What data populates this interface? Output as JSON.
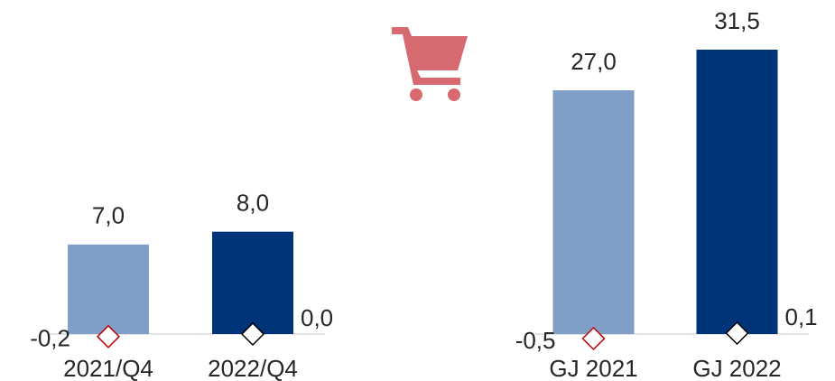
{
  "chart_data": [
    {
      "type": "bar",
      "categories": [
        "2021/Q4",
        "2022/Q4"
      ],
      "values": [
        7.0,
        8.0
      ],
      "value_labels": [
        "7,0",
        "8,0"
      ],
      "colors": [
        "#7f9fc6",
        "#003478"
      ],
      "markers": {
        "values": [
          -0.2,
          0.0
        ],
        "value_labels": [
          "-0,2",
          "0,0"
        ],
        "colors": [
          "#c00000",
          "#000000"
        ]
      },
      "ylim": [
        0,
        24
      ]
    },
    {
      "type": "bar",
      "categories": [
        "GJ 2021",
        "GJ 2022"
      ],
      "values": [
        27.0,
        31.5
      ],
      "value_labels": [
        "27,0",
        "31,5"
      ],
      "colors": [
        "#7f9fc6",
        "#003478"
      ],
      "markers": {
        "values": [
          -0.5,
          0.1
        ],
        "value_labels": [
          "-0,5",
          "0,1"
        ],
        "colors": [
          "#c00000",
          "#000000"
        ]
      },
      "ylim": [
        0,
        34
      ]
    }
  ]
}
